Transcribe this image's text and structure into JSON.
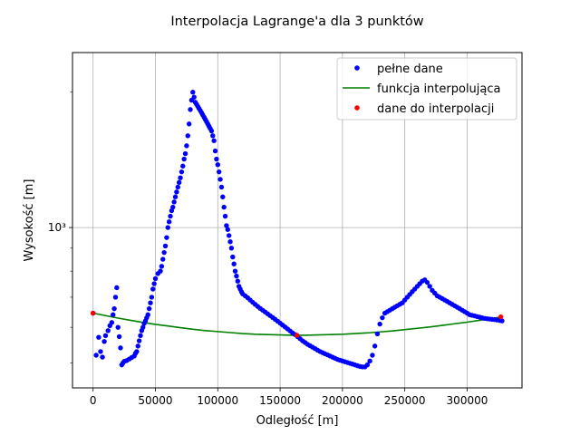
{
  "chart_data": {
    "type": "scatter",
    "title": "Interpolacja Lagrange'a dla 3 punktów",
    "xlabel": "Odległość [m]",
    "ylabel": "Wysokość [m]",
    "xlim": [
      -16500,
      344000
    ],
    "ylim_log": [
      440,
      2450
    ],
    "yscale": "log",
    "grid": true,
    "legend_position": "top-right",
    "x_ticks": [
      0,
      50000,
      100000,
      150000,
      200000,
      250000,
      300000
    ],
    "x_tick_labels": [
      "0",
      "50000",
      "100000",
      "150000",
      "200000",
      "250000",
      "300000"
    ],
    "y_ticks": [
      1000
    ],
    "y_tick_labels": [
      "10³"
    ],
    "series": [
      {
        "name": "pełne dane",
        "kind": "points",
        "color": "#0000ff",
        "points": [
          [
            0,
            645
          ],
          [
            2500,
            520
          ],
          [
            4500,
            570
          ],
          [
            6000,
            530
          ],
          [
            7500,
            515
          ],
          [
            9000,
            558
          ],
          [
            10000,
            575
          ],
          [
            12000,
            590
          ],
          [
            13500,
            605
          ],
          [
            15000,
            615
          ],
          [
            16000,
            640
          ],
          [
            17000,
            660
          ],
          [
            18000,
            700
          ],
          [
            19000,
            735
          ],
          [
            20000,
            600
          ],
          [
            21000,
            572
          ],
          [
            22000,
            540
          ],
          [
            23000,
            495
          ],
          [
            24000,
            500
          ],
          [
            25000,
            504
          ],
          [
            27000,
            506
          ],
          [
            29000,
            510
          ],
          [
            31000,
            514
          ],
          [
            33000,
            518
          ],
          [
            34000,
            525
          ],
          [
            35000,
            530
          ],
          [
            36000,
            545
          ],
          [
            37000,
            560
          ],
          [
            38000,
            575
          ],
          [
            39000,
            590
          ],
          [
            40000,
            600
          ],
          [
            41000,
            612
          ],
          [
            42000,
            620
          ],
          [
            43000,
            630
          ],
          [
            44000,
            640
          ],
          [
            45000,
            660
          ],
          [
            46000,
            680
          ],
          [
            47000,
            700
          ],
          [
            48000,
            730
          ],
          [
            49000,
            750
          ],
          [
            50000,
            770
          ],
          [
            52000,
            790
          ],
          [
            54000,
            800
          ],
          [
            55000,
            820
          ],
          [
            56000,
            850
          ],
          [
            57000,
            880
          ],
          [
            58000,
            910
          ],
          [
            59000,
            950
          ],
          [
            60000,
            1000
          ],
          [
            61000,
            1030
          ],
          [
            62000,
            1060
          ],
          [
            63000,
            1090
          ],
          [
            64000,
            1110
          ],
          [
            65000,
            1140
          ],
          [
            66000,
            1170
          ],
          [
            67000,
            1200
          ],
          [
            68000,
            1230
          ],
          [
            69000,
            1260
          ],
          [
            70000,
            1290
          ],
          [
            71000,
            1330
          ],
          [
            72000,
            1370
          ],
          [
            73000,
            1420
          ],
          [
            74000,
            1460
          ],
          [
            75000,
            1520
          ],
          [
            76000,
            1600
          ],
          [
            77000,
            1700
          ],
          [
            78000,
            1830
          ],
          [
            79000,
            1920
          ],
          [
            80000,
            2000
          ],
          [
            81000,
            1950
          ],
          [
            82000,
            1900
          ],
          [
            83000,
            1880
          ],
          [
            84000,
            1860
          ],
          [
            85000,
            1840
          ],
          [
            86000,
            1820
          ],
          [
            87000,
            1800
          ],
          [
            88000,
            1780
          ],
          [
            89000,
            1760
          ],
          [
            90000,
            1740
          ],
          [
            91000,
            1720
          ],
          [
            92000,
            1700
          ],
          [
            93000,
            1680
          ],
          [
            94000,
            1660
          ],
          [
            95000,
            1640
          ],
          [
            96000,
            1600
          ],
          [
            97000,
            1560
          ],
          [
            98000,
            1480
          ],
          [
            99000,
            1420
          ],
          [
            100000,
            1380
          ],
          [
            101000,
            1330
          ],
          [
            102000,
            1280
          ],
          [
            103000,
            1230
          ],
          [
            104000,
            1170
          ],
          [
            105000,
            1110
          ],
          [
            106000,
            1060
          ],
          [
            107000,
            1010
          ],
          [
            108000,
            990
          ],
          [
            109000,
            960
          ],
          [
            110000,
            930
          ],
          [
            111000,
            900
          ],
          [
            112000,
            860
          ],
          [
            113000,
            830
          ],
          [
            114000,
            800
          ],
          [
            115000,
            780
          ],
          [
            116000,
            760
          ],
          [
            117000,
            740
          ],
          [
            118000,
            730
          ],
          [
            119000,
            720
          ],
          [
            120000,
            712
          ],
          [
            122000,
            705
          ],
          [
            124000,
            698
          ],
          [
            126000,
            690
          ],
          [
            128000,
            682
          ],
          [
            130000,
            675
          ],
          [
            132000,
            668
          ],
          [
            134000,
            661
          ],
          [
            136000,
            655
          ],
          [
            138000,
            649
          ],
          [
            140000,
            643
          ],
          [
            142000,
            637
          ],
          [
            144000,
            631
          ],
          [
            146000,
            625
          ],
          [
            148000,
            619
          ],
          [
            150000,
            613
          ],
          [
            152000,
            607
          ],
          [
            154000,
            601
          ],
          [
            156000,
            595
          ],
          [
            158000,
            589
          ],
          [
            160000,
            583
          ],
          [
            162000,
            578
          ],
          [
            164000,
            572
          ],
          [
            166000,
            566
          ],
          [
            168000,
            560
          ],
          [
            170000,
            555
          ],
          [
            172000,
            550
          ],
          [
            174000,
            546
          ],
          [
            176000,
            542
          ],
          [
            178000,
            538
          ],
          [
            180000,
            534
          ],
          [
            182000,
            530
          ],
          [
            184000,
            527
          ],
          [
            186000,
            524
          ],
          [
            188000,
            521
          ],
          [
            190000,
            518
          ],
          [
            192000,
            515
          ],
          [
            194000,
            512
          ],
          [
            196000,
            509
          ],
          [
            198000,
            507
          ],
          [
            200000,
            505
          ],
          [
            202000,
            503
          ],
          [
            204000,
            501
          ],
          [
            206000,
            499
          ],
          [
            208000,
            497
          ],
          [
            210000,
            495
          ],
          [
            212000,
            493
          ],
          [
            214000,
            491
          ],
          [
            216000,
            490
          ],
          [
            218000,
            490
          ],
          [
            220000,
            495
          ],
          [
            222000,
            505
          ],
          [
            224000,
            520
          ],
          [
            226000,
            545
          ],
          [
            228000,
            580
          ],
          [
            230000,
            610
          ],
          [
            232000,
            630
          ],
          [
            234000,
            645
          ],
          [
            236000,
            650
          ],
          [
            238000,
            655
          ],
          [
            240000,
            660
          ],
          [
            242000,
            665
          ],
          [
            244000,
            670
          ],
          [
            246000,
            675
          ],
          [
            248000,
            680
          ],
          [
            250000,
            690
          ],
          [
            252000,
            700
          ],
          [
            254000,
            710
          ],
          [
            256000,
            720
          ],
          [
            258000,
            730
          ],
          [
            260000,
            740
          ],
          [
            262000,
            750
          ],
          [
            264000,
            760
          ],
          [
            266000,
            765
          ],
          [
            268000,
            755
          ],
          [
            270000,
            740
          ],
          [
            272000,
            725
          ],
          [
            274000,
            715
          ],
          [
            276000,
            705
          ],
          [
            278000,
            700
          ],
          [
            280000,
            695
          ],
          [
            282000,
            690
          ],
          [
            284000,
            685
          ],
          [
            286000,
            680
          ],
          [
            288000,
            675
          ],
          [
            290000,
            670
          ],
          [
            292000,
            665
          ],
          [
            294000,
            660
          ],
          [
            296000,
            655
          ],
          [
            298000,
            650
          ],
          [
            300000,
            645
          ],
          [
            302000,
            640
          ],
          [
            304000,
            638
          ],
          [
            306000,
            636
          ],
          [
            308000,
            634
          ],
          [
            310000,
            632
          ],
          [
            312000,
            630
          ],
          [
            314000,
            628
          ],
          [
            316000,
            627
          ],
          [
            318000,
            626
          ],
          [
            320000,
            625
          ],
          [
            322000,
            624
          ],
          [
            324000,
            623
          ],
          [
            326000,
            622
          ],
          [
            327000,
            621
          ],
          [
            328000,
            620
          ]
        ]
      },
      {
        "name": "funkcja interpolująca",
        "kind": "line",
        "color": "#008000",
        "points": [
          [
            0,
            645
          ],
          [
            10000,
            637
          ],
          [
            20000,
            629
          ],
          [
            30000,
            622
          ],
          [
            40000,
            615
          ],
          [
            50000,
            609
          ],
          [
            60000,
            604
          ],
          [
            70000,
            599
          ],
          [
            80000,
            594
          ],
          [
            90000,
            590
          ],
          [
            100000,
            587
          ],
          [
            110000,
            584
          ],
          [
            120000,
            581
          ],
          [
            130000,
            579
          ],
          [
            140000,
            578
          ],
          [
            150000,
            577
          ],
          [
            160000,
            576
          ],
          [
            170000,
            576
          ],
          [
            180000,
            577
          ],
          [
            190000,
            578
          ],
          [
            200000,
            579
          ],
          [
            210000,
            581
          ],
          [
            220000,
            583
          ],
          [
            230000,
            586
          ],
          [
            240000,
            589
          ],
          [
            250000,
            593
          ],
          [
            260000,
            597
          ],
          [
            270000,
            601
          ],
          [
            280000,
            606
          ],
          [
            290000,
            611
          ],
          [
            300000,
            616
          ],
          [
            310000,
            622
          ],
          [
            320000,
            628
          ],
          [
            328000,
            633
          ]
        ]
      },
      {
        "name": "dane do interpolacji",
        "kind": "points",
        "color": "#ff0000",
        "points": [
          [
            0,
            645
          ],
          [
            163500,
            576
          ],
          [
            327000,
            633
          ]
        ]
      }
    ]
  }
}
